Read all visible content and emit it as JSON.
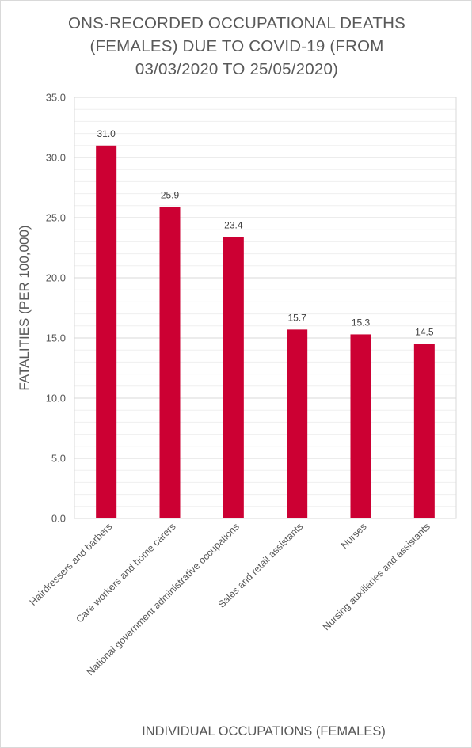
{
  "chart_data": {
    "type": "bar",
    "title_lines": [
      "ONS-RECORDED OCCUPATIONAL DEATHS",
      "(FEMALES) DUE TO COVID-19 (FROM",
      "03/03/2020 TO 25/05/2020)"
    ],
    "categories": [
      "Hairdressers and barbers",
      "Care workers and home carers",
      "National government administrative occupations",
      "Sales and retail assistants",
      "Nurses",
      "Nursing auxiliaries and assistants"
    ],
    "series": [
      {
        "values": [
          31.0,
          25.9,
          23.4,
          15.7,
          15.3,
          14.5
        ]
      }
    ],
    "data_labels": [
      "31.0",
      "25.9",
      "23.4",
      "15.7",
      "15.3",
      "14.5"
    ],
    "xlabel": "INDIVIDUAL OCCUPATIONS (FEMALES)",
    "ylabel": "FATALITIES (PER 100,000)",
    "ylim": [
      0,
      35
    ],
    "yticks": [
      0,
      5,
      10,
      15,
      20,
      25,
      30,
      35
    ],
    "ytick_labels": [
      "0.0",
      "5.0",
      "10.0",
      "15.0",
      "20.0",
      "25.0",
      "30.0",
      "35.0"
    ],
    "minor_grid_step": 1,
    "grid": true,
    "legend": false,
    "bar_color": "#cc0033"
  }
}
